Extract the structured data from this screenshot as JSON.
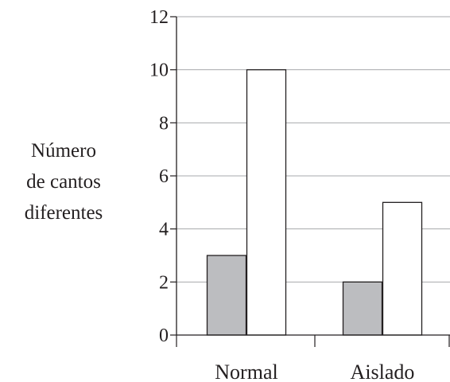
{
  "chart_data": {
    "type": "bar",
    "title": "",
    "xlabel": "",
    "ylabel_lines": [
      "Número",
      "de cantos",
      "diferentes"
    ],
    "categories": [
      "Normal",
      "Aislado"
    ],
    "series": [
      {
        "values": [
          3,
          2
        ],
        "color": "#bcbdc0"
      },
      {
        "values": [
          10,
          5
        ],
        "color": "#ffffff"
      }
    ],
    "ylim": [
      0,
      12
    ],
    "yticks": [
      "0",
      "2",
      "4",
      "6",
      "8",
      "10",
      "12"
    ],
    "grid": true,
    "bar_outline_color": "#231f20",
    "grid_color": "#a7a9ac"
  }
}
